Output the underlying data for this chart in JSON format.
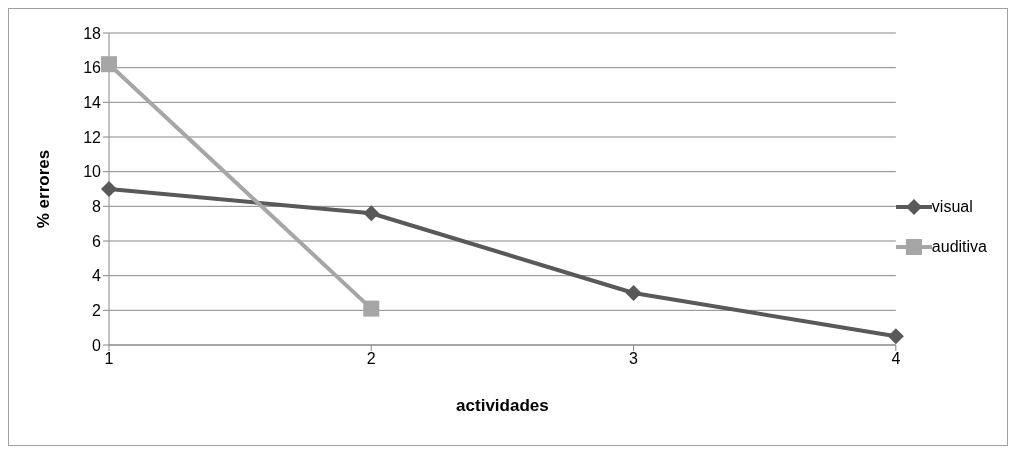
{
  "chart_data": {
    "type": "line",
    "xlabel": "actividades",
    "ylabel": "% errores",
    "categories": [
      "1",
      "2",
      "3",
      "4"
    ],
    "series": [
      {
        "name": "visual",
        "color": "#595959",
        "marker": "diamond",
        "values": [
          9,
          7.6,
          3,
          0.5
        ]
      },
      {
        "name": "auditiva",
        "color": "#a6a6a6",
        "marker": "square",
        "values": [
          16.2,
          2.1,
          null,
          null
        ]
      }
    ],
    "ylim": [
      0,
      18
    ],
    "yticks": [
      0,
      2,
      4,
      6,
      8,
      10,
      12,
      14,
      16,
      18
    ],
    "grid": "y",
    "legend": "right"
  }
}
